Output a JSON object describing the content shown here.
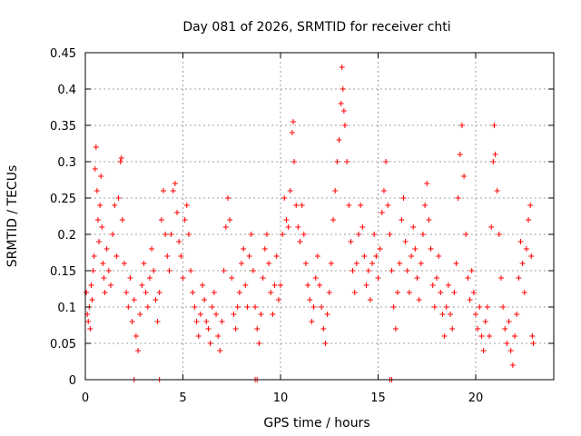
{
  "chart_data": {
    "type": "scatter",
    "title": "Day 081 of 2026, SRMTID for receiver chti",
    "xlabel": "GPS time / hours",
    "ylabel": "SRMTID / TECUs",
    "xlim": [
      0,
      24
    ],
    "ylim": [
      0,
      0.45
    ],
    "xticks": [
      0,
      5,
      10,
      15,
      20
    ],
    "xtick_labels": [
      "0",
      "5",
      "10",
      "15",
      "20"
    ],
    "yticks": [
      0,
      0.05,
      0.1,
      0.15,
      0.2,
      0.25,
      0.3,
      0.35,
      0.4,
      0.45
    ],
    "ytick_labels": [
      "0",
      "0.05",
      "0.1",
      "0.15",
      "0.2",
      "0.25",
      "0.3",
      "0.35",
      "0.4",
      "0.45"
    ],
    "grid": true,
    "marker": "plus",
    "series_color": "#ff0000",
    "series": [
      {
        "name": "SRMTID",
        "points": [
          [
            0.05,
            0.12
          ],
          [
            0.1,
            0.09
          ],
          [
            0.15,
            0.08
          ],
          [
            0.2,
            0.1
          ],
          [
            0.25,
            0.07
          ],
          [
            0.3,
            0.13
          ],
          [
            0.35,
            0.11
          ],
          [
            0.4,
            0.15
          ],
          [
            0.45,
            0.17
          ],
          [
            0.5,
            0.29
          ],
          [
            0.55,
            0.32
          ],
          [
            0.6,
            0.26
          ],
          [
            0.65,
            0.22
          ],
          [
            0.7,
            0.19
          ],
          [
            0.75,
            0.24
          ],
          [
            0.8,
            0.28
          ],
          [
            0.85,
            0.21
          ],
          [
            0.9,
            0.16
          ],
          [
            0.95,
            0.14
          ],
          [
            1.0,
            0.12
          ],
          [
            1.1,
            0.18
          ],
          [
            1.2,
            0.15
          ],
          [
            1.3,
            0.13
          ],
          [
            1.4,
            0.2
          ],
          [
            1.5,
            0.24
          ],
          [
            1.6,
            0.17
          ],
          [
            1.7,
            0.25
          ],
          [
            1.8,
            0.3
          ],
          [
            1.85,
            0.305
          ],
          [
            1.9,
            0.22
          ],
          [
            2.0,
            0.16
          ],
          [
            2.1,
            0.12
          ],
          [
            2.2,
            0.1
          ],
          [
            2.3,
            0.14
          ],
          [
            2.4,
            0.08
          ],
          [
            2.5,
            0.11
          ],
          [
            2.6,
            0.06
          ],
          [
            2.7,
            0.04
          ],
          [
            2.8,
            0.09
          ],
          [
            2.9,
            0.13
          ],
          [
            3.0,
            0.16
          ],
          [
            3.1,
            0.12
          ],
          [
            3.2,
            0.1
          ],
          [
            3.3,
            0.14
          ],
          [
            3.4,
            0.18
          ],
          [
            3.5,
            0.15
          ],
          [
            3.6,
            0.11
          ],
          [
            3.7,
            0.08
          ],
          [
            3.8,
            0.12
          ],
          [
            3.9,
            0.22
          ],
          [
            4.0,
            0.26
          ],
          [
            4.1,
            0.2
          ],
          [
            4.2,
            0.17
          ],
          [
            4.3,
            0.15
          ],
          [
            4.4,
            0.2
          ],
          [
            4.5,
            0.26
          ],
          [
            4.6,
            0.27
          ],
          [
            4.7,
            0.23
          ],
          [
            4.8,
            0.19
          ],
          [
            4.9,
            0.17
          ],
          [
            5.0,
            0.14
          ],
          [
            5.1,
            0.22
          ],
          [
            5.2,
            0.24
          ],
          [
            5.3,
            0.2
          ],
          [
            5.4,
            0.15
          ],
          [
            5.5,
            0.12
          ],
          [
            5.6,
            0.1
          ],
          [
            5.7,
            0.08
          ],
          [
            5.8,
            0.06
          ],
          [
            5.9,
            0.09
          ],
          [
            6.0,
            0.13
          ],
          [
            6.1,
            0.11
          ],
          [
            6.2,
            0.08
          ],
          [
            6.3,
            0.07
          ],
          [
            6.4,
            0.05
          ],
          [
            6.5,
            0.1
          ],
          [
            6.6,
            0.12
          ],
          [
            6.7,
            0.09
          ],
          [
            6.8,
            0.06
          ],
          [
            6.9,
            0.04
          ],
          [
            7.0,
            0.08
          ],
          [
            7.1,
            0.15
          ],
          [
            7.2,
            0.21
          ],
          [
            7.3,
            0.25
          ],
          [
            7.4,
            0.22
          ],
          [
            7.5,
            0.14
          ],
          [
            7.6,
            0.09
          ],
          [
            7.7,
            0.07
          ],
          [
            7.8,
            0.1
          ],
          [
            7.9,
            0.12
          ],
          [
            8.0,
            0.16
          ],
          [
            8.1,
            0.18
          ],
          [
            8.2,
            0.13
          ],
          [
            8.3,
            0.1
          ],
          [
            8.4,
            0.17
          ],
          [
            8.5,
            0.2
          ],
          [
            8.6,
            0.15
          ],
          [
            8.7,
            0.1
          ],
          [
            8.8,
            0.07
          ],
          [
            8.9,
            0.05
          ],
          [
            9.0,
            0.09
          ],
          [
            9.1,
            0.14
          ],
          [
            9.2,
            0.18
          ],
          [
            9.3,
            0.2
          ],
          [
            9.4,
            0.16
          ],
          [
            9.5,
            0.12
          ],
          [
            9.6,
            0.09
          ],
          [
            9.7,
            0.13
          ],
          [
            9.8,
            0.17
          ],
          [
            9.9,
            0.11
          ],
          [
            10.0,
            0.13
          ],
          [
            10.1,
            0.2
          ],
          [
            10.2,
            0.25
          ],
          [
            10.3,
            0.22
          ],
          [
            10.4,
            0.21
          ],
          [
            10.5,
            0.26
          ],
          [
            10.6,
            0.34
          ],
          [
            10.65,
            0.355
          ],
          [
            10.7,
            0.3
          ],
          [
            10.8,
            0.24
          ],
          [
            10.9,
            0.21
          ],
          [
            11.0,
            0.19
          ],
          [
            11.1,
            0.24
          ],
          [
            11.2,
            0.2
          ],
          [
            11.3,
            0.16
          ],
          [
            11.4,
            0.13
          ],
          [
            11.5,
            0.11
          ],
          [
            11.6,
            0.08
          ],
          [
            11.7,
            0.1
          ],
          [
            11.8,
            0.14
          ],
          [
            11.9,
            0.17
          ],
          [
            12.0,
            0.13
          ],
          [
            12.1,
            0.1
          ],
          [
            12.2,
            0.07
          ],
          [
            12.3,
            0.05
          ],
          [
            12.4,
            0.09
          ],
          [
            12.5,
            0.12
          ],
          [
            12.6,
            0.16
          ],
          [
            12.7,
            0.22
          ],
          [
            12.8,
            0.26
          ],
          [
            12.9,
            0.3
          ],
          [
            13.0,
            0.33
          ],
          [
            13.1,
            0.38
          ],
          [
            13.15,
            0.43
          ],
          [
            13.2,
            0.4
          ],
          [
            13.25,
            0.37
          ],
          [
            13.3,
            0.35
          ],
          [
            13.4,
            0.3
          ],
          [
            13.5,
            0.24
          ],
          [
            13.6,
            0.19
          ],
          [
            13.7,
            0.15
          ],
          [
            13.8,
            0.12
          ],
          [
            13.9,
            0.16
          ],
          [
            14.0,
            0.2
          ],
          [
            14.1,
            0.24
          ],
          [
            14.2,
            0.21
          ],
          [
            14.3,
            0.17
          ],
          [
            14.4,
            0.13
          ],
          [
            14.5,
            0.15
          ],
          [
            14.6,
            0.11
          ],
          [
            14.7,
            0.16
          ],
          [
            14.8,
            0.2
          ],
          [
            14.9,
            0.17
          ],
          [
            15.0,
            0.14
          ],
          [
            15.1,
            0.18
          ],
          [
            15.2,
            0.23
          ],
          [
            15.3,
            0.26
          ],
          [
            15.4,
            0.3
          ],
          [
            15.5,
            0.24
          ],
          [
            15.6,
            0.2
          ],
          [
            15.7,
            0.15
          ],
          [
            15.8,
            0.1
          ],
          [
            15.9,
            0.07
          ],
          [
            16.0,
            0.12
          ],
          [
            16.1,
            0.16
          ],
          [
            16.2,
            0.22
          ],
          [
            16.3,
            0.25
          ],
          [
            16.4,
            0.19
          ],
          [
            16.5,
            0.15
          ],
          [
            16.6,
            0.12
          ],
          [
            16.7,
            0.17
          ],
          [
            16.8,
            0.21
          ],
          [
            16.9,
            0.18
          ],
          [
            17.0,
            0.14
          ],
          [
            17.1,
            0.11
          ],
          [
            17.2,
            0.16
          ],
          [
            17.3,
            0.2
          ],
          [
            17.4,
            0.24
          ],
          [
            17.5,
            0.27
          ],
          [
            17.6,
            0.22
          ],
          [
            17.7,
            0.18
          ],
          [
            17.8,
            0.13
          ],
          [
            17.9,
            0.1
          ],
          [
            18.0,
            0.14
          ],
          [
            18.1,
            0.17
          ],
          [
            18.2,
            0.12
          ],
          [
            18.3,
            0.09
          ],
          [
            18.4,
            0.06
          ],
          [
            18.5,
            0.1
          ],
          [
            18.6,
            0.13
          ],
          [
            18.7,
            0.09
          ],
          [
            18.8,
            0.07
          ],
          [
            18.9,
            0.12
          ],
          [
            19.0,
            0.16
          ],
          [
            19.1,
            0.25
          ],
          [
            19.2,
            0.31
          ],
          [
            19.3,
            0.35
          ],
          [
            19.4,
            0.28
          ],
          [
            19.5,
            0.2
          ],
          [
            19.6,
            0.14
          ],
          [
            19.7,
            0.11
          ],
          [
            19.8,
            0.15
          ],
          [
            19.9,
            0.12
          ],
          [
            20.0,
            0.09
          ],
          [
            20.1,
            0.07
          ],
          [
            20.2,
            0.1
          ],
          [
            20.3,
            0.06
          ],
          [
            20.4,
            0.04
          ],
          [
            20.5,
            0.08
          ],
          [
            20.6,
            0.1
          ],
          [
            20.7,
            0.06
          ],
          [
            20.8,
            0.21
          ],
          [
            20.9,
            0.3
          ],
          [
            20.95,
            0.35
          ],
          [
            21.0,
            0.31
          ],
          [
            21.1,
            0.26
          ],
          [
            21.2,
            0.2
          ],
          [
            21.3,
            0.14
          ],
          [
            21.4,
            0.1
          ],
          [
            21.5,
            0.07
          ],
          [
            21.6,
            0.05
          ],
          [
            21.7,
            0.08
          ],
          [
            21.8,
            0.04
          ],
          [
            21.9,
            0.02
          ],
          [
            22.0,
            0.06
          ],
          [
            22.1,
            0.09
          ],
          [
            22.2,
            0.14
          ],
          [
            22.3,
            0.19
          ],
          [
            22.4,
            0.16
          ],
          [
            22.5,
            0.12
          ],
          [
            22.6,
            0.18
          ],
          [
            22.7,
            0.22
          ],
          [
            22.8,
            0.24
          ],
          [
            22.85,
            0.17
          ],
          [
            22.9,
            0.06
          ],
          [
            22.95,
            0.05
          ],
          [
            2.5,
            0.0
          ],
          [
            3.8,
            0.0
          ],
          [
            8.7,
            0.0
          ],
          [
            8.8,
            0.0
          ],
          [
            15.6,
            0.0
          ],
          [
            15.7,
            0.0
          ]
        ]
      }
    ]
  }
}
